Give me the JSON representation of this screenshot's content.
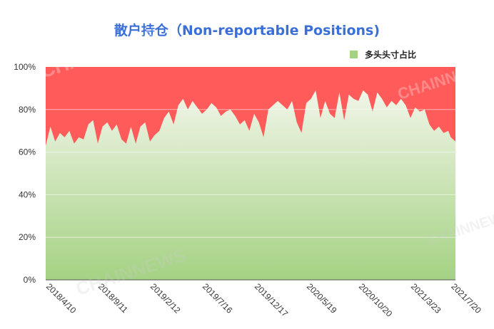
{
  "chart_data": {
    "type": "area",
    "title": "散户持仓（Non-reportable Positions)",
    "legend": {
      "label": "多头头寸占比",
      "placement": "top-right"
    },
    "colors": {
      "series_top": "#f1f5e8",
      "series_bottom": "#a4d283",
      "remainder": "#ff5b5b",
      "title": "#3a6fd8"
    },
    "ylim": [
      0,
      100
    ],
    "y_ticks": [
      "0%",
      "20%",
      "40%",
      "60%",
      "80%",
      "100%"
    ],
    "y_tick_values": [
      0,
      20,
      40,
      60,
      80,
      100
    ],
    "x_range": [
      "2018-04-10",
      "2021-08-03"
    ],
    "x_ticks": [
      {
        "label": "2018/4/10",
        "date": "2018-04-10"
      },
      {
        "label": "2018/9/11",
        "date": "2018-09-11"
      },
      {
        "label": "2019/2/12",
        "date": "2019-02-12"
      },
      {
        "label": "2019/7/16",
        "date": "2019-07-16"
      },
      {
        "label": "2019/12/17",
        "date": "2019-12-17"
      },
      {
        "label": "2020/5/19",
        "date": "2020-05-19"
      },
      {
        "label": "2020/10/20",
        "date": "2020-10-20"
      },
      {
        "label": "2021/3/23",
        "date": "2021-03-23"
      },
      {
        "label": "2021/7/20",
        "date": "2021-07-20"
      }
    ],
    "series": [
      {
        "name": "多头头寸占比",
        "values": [
          [
            "2018-04-10",
            63
          ],
          [
            "2018-04-24",
            72
          ],
          [
            "2018-05-08",
            65
          ],
          [
            "2018-05-22",
            69
          ],
          [
            "2018-06-05",
            67
          ],
          [
            "2018-06-19",
            70
          ],
          [
            "2018-07-03",
            64
          ],
          [
            "2018-07-17",
            67
          ],
          [
            "2018-07-31",
            66
          ],
          [
            "2018-08-14",
            73
          ],
          [
            "2018-08-28",
            75
          ],
          [
            "2018-09-11",
            64
          ],
          [
            "2018-09-25",
            72
          ],
          [
            "2018-10-09",
            74
          ],
          [
            "2018-10-23",
            70
          ],
          [
            "2018-11-06",
            73
          ],
          [
            "2018-11-20",
            66
          ],
          [
            "2018-12-04",
            64
          ],
          [
            "2018-12-18",
            72
          ],
          [
            "2019-01-01",
            64
          ],
          [
            "2019-01-15",
            72
          ],
          [
            "2019-01-29",
            74
          ],
          [
            "2019-02-12",
            65
          ],
          [
            "2019-02-26",
            68
          ],
          [
            "2019-03-12",
            70
          ],
          [
            "2019-03-26",
            76
          ],
          [
            "2019-04-09",
            79
          ],
          [
            "2019-04-23",
            73
          ],
          [
            "2019-05-07",
            82
          ],
          [
            "2019-05-21",
            85
          ],
          [
            "2019-06-04",
            80
          ],
          [
            "2019-06-18",
            84
          ],
          [
            "2019-07-02",
            81
          ],
          [
            "2019-07-16",
            78
          ],
          [
            "2019-07-30",
            80
          ],
          [
            "2019-08-13",
            83
          ],
          [
            "2019-08-27",
            81
          ],
          [
            "2019-09-10",
            77
          ],
          [
            "2019-09-24",
            79
          ],
          [
            "2019-10-08",
            80
          ],
          [
            "2019-10-22",
            77
          ],
          [
            "2019-11-05",
            73
          ],
          [
            "2019-11-19",
            75
          ],
          [
            "2019-12-03",
            70
          ],
          [
            "2019-12-17",
            78
          ],
          [
            "2019-12-31",
            74
          ],
          [
            "2020-01-14",
            67
          ],
          [
            "2020-01-28",
            80
          ],
          [
            "2020-02-11",
            82
          ],
          [
            "2020-02-25",
            84
          ],
          [
            "2020-03-10",
            82
          ],
          [
            "2020-03-24",
            80
          ],
          [
            "2020-04-07",
            84
          ],
          [
            "2020-04-21",
            74
          ],
          [
            "2020-05-05",
            69
          ],
          [
            "2020-05-19",
            83
          ],
          [
            "2020-06-02",
            85
          ],
          [
            "2020-06-16",
            89
          ],
          [
            "2020-06-30",
            76
          ],
          [
            "2020-07-14",
            84
          ],
          [
            "2020-07-28",
            78
          ],
          [
            "2020-08-11",
            76
          ],
          [
            "2020-08-25",
            88
          ],
          [
            "2020-09-08",
            75
          ],
          [
            "2020-09-22",
            87
          ],
          [
            "2020-10-06",
            85
          ],
          [
            "2020-10-20",
            84
          ],
          [
            "2020-11-03",
            89
          ],
          [
            "2020-11-17",
            87
          ],
          [
            "2020-12-01",
            79
          ],
          [
            "2020-12-15",
            88
          ],
          [
            "2020-12-29",
            85
          ],
          [
            "2021-01-12",
            81
          ],
          [
            "2021-01-26",
            84
          ],
          [
            "2021-02-09",
            82
          ],
          [
            "2021-02-23",
            85
          ],
          [
            "2021-03-09",
            82
          ],
          [
            "2021-03-23",
            76
          ],
          [
            "2021-04-06",
            81
          ],
          [
            "2021-04-20",
            79
          ],
          [
            "2021-05-04",
            80
          ],
          [
            "2021-05-18",
            73
          ],
          [
            "2021-06-01",
            70
          ],
          [
            "2021-06-15",
            72
          ],
          [
            "2021-06-29",
            69
          ],
          [
            "2021-07-13",
            70
          ],
          [
            "2021-07-20",
            67
          ],
          [
            "2021-08-03",
            65
          ]
        ]
      }
    ],
    "grid": {
      "y": true,
      "x": false
    },
    "watermark": "CHAINNEWS"
  }
}
